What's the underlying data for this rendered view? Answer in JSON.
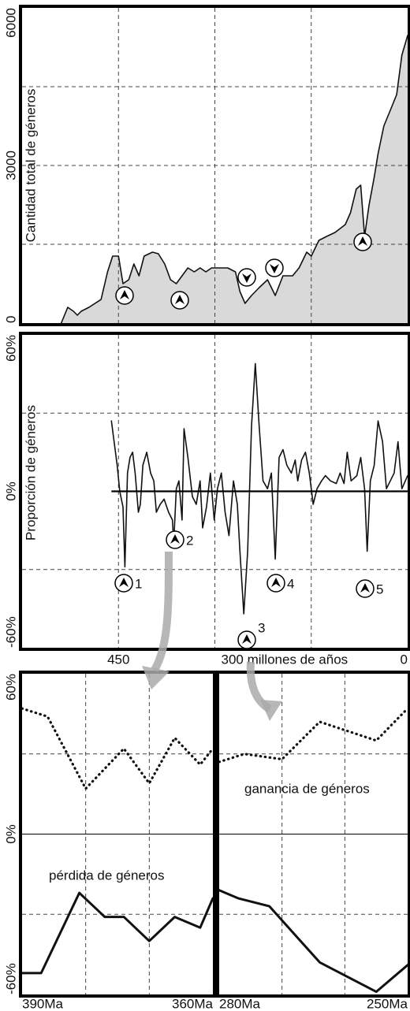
{
  "chart_data": [
    {
      "type": "area",
      "ylabel": "Cantidad total de géneros",
      "color": "#111111",
      "fill": "#d9d9d9",
      "xlim": [
        600,
        0
      ],
      "ylim": [
        0,
        6000
      ],
      "yticks": [
        0,
        3000,
        6000
      ],
      "ygrid": [
        1500,
        3000,
        4500
      ],
      "xgrid": [
        450,
        300,
        150
      ],
      "x": [
        539,
        529,
        520,
        514,
        508,
        496,
        477,
        467,
        459,
        450,
        443,
        434,
        426,
        418,
        410,
        397,
        388,
        378,
        369,
        360,
        351,
        342,
        332,
        323,
        314,
        305,
        292,
        280,
        268,
        261,
        253,
        243,
        231,
        218,
        206,
        194,
        179,
        169,
        157,
        150,
        138,
        126,
        113,
        97,
        89,
        80,
        73,
        67,
        60,
        52,
        46,
        37,
        27,
        17,
        9,
        0
      ],
      "values": [
        0,
        300,
        225,
        150,
        225,
        300,
        450,
        975,
        1275,
        1275,
        750,
        825,
        1125,
        900,
        1275,
        1350,
        1320,
        1125,
        825,
        750,
        900,
        1050,
        975,
        1050,
        975,
        1050,
        1050,
        1050,
        975,
        600,
        375,
        525,
        675,
        825,
        525,
        900,
        900,
        1050,
        1350,
        1275,
        1575,
        1650,
        1725,
        1875,
        2100,
        2550,
        2625,
        1650,
        2250,
        2775,
        3225,
        3750,
        4050,
        4350,
        5100,
        5475
      ]
    },
    {
      "type": "line",
      "ylabel": "Proporción de géneros",
      "color": "#111111",
      "zero_line": true,
      "xlim": [
        600,
        0
      ],
      "ylim": [
        -60,
        60
      ],
      "yticks": [
        {
          "value": 60,
          "label": "60%"
        },
        {
          "value": 0,
          "label": "0%"
        },
        {
          "value": -60,
          "label": "-60%"
        }
      ],
      "xticks": [
        {
          "value": 450,
          "label": "450"
        },
        {
          "value": 300,
          "label": "300 millones de años"
        },
        0
      ],
      "ygrid": [
        30,
        -30
      ],
      "xgrid": [
        450,
        300,
        150
      ],
      "markers": [
        "1",
        "2",
        "3",
        "4",
        "5"
      ],
      "x": [
        461,
        452,
        448,
        443,
        440,
        436,
        432,
        428,
        424,
        419,
        416,
        412,
        406,
        400,
        395,
        391,
        385,
        379,
        372,
        366,
        364,
        360,
        356,
        351,
        348,
        342,
        335,
        329,
        323,
        319,
        313,
        307,
        301,
        296,
        290,
        284,
        278,
        271,
        265,
        261,
        255,
        249,
        243,
        237,
        231,
        225,
        218,
        212,
        206,
        200,
        194,
        188,
        181,
        175,
        171,
        165,
        159,
        153,
        147,
        141,
        134,
        128,
        120,
        111,
        105,
        99,
        94,
        88,
        79,
        73,
        67,
        63,
        58,
        52,
        46,
        39,
        33,
        27,
        21,
        15,
        9,
        0
      ],
      "values": [
        27,
        10,
        0,
        -6,
        -29,
        7,
        13,
        15,
        7,
        -8,
        -5,
        10,
        15,
        7,
        4,
        -8,
        -5,
        -3,
        -8,
        -11,
        -20,
        1,
        4,
        -11,
        24,
        13,
        -2,
        -5,
        4,
        -14,
        -6,
        7,
        -11,
        1,
        7,
        -8,
        -17,
        4,
        -5,
        -23,
        -47,
        -23,
        25,
        49,
        25,
        4,
        1,
        7,
        -26,
        13,
        16,
        10,
        7,
        12,
        4,
        12,
        15,
        7,
        -5,
        1,
        4,
        6,
        4,
        3,
        7,
        3,
        15,
        4,
        6,
        13,
        1,
        -23,
        4,
        10,
        27,
        19,
        1,
        4,
        7,
        19,
        1,
        6
      ]
    },
    {
      "type": "line",
      "annotation": "pérdida de géneros",
      "zero_line": true,
      "xlim": [
        390,
        360
      ],
      "ylim": [
        -60,
        60
      ],
      "yticks": [
        {
          "value": 60,
          "label": "60%"
        },
        {
          "value": 0,
          "label": "0%"
        },
        {
          "value": -60,
          "label": "-60%"
        }
      ],
      "xticks": [
        {
          "value": 390,
          "label": "390Ma"
        },
        {
          "value": 360,
          "label": "360Ma"
        }
      ],
      "ygrid": [
        30,
        -30
      ],
      "xgrid": [
        380,
        370
      ],
      "series": [
        {
          "style": "dotted",
          "color": "#111111",
          "x": [
            390,
            386,
            380,
            374,
            370,
            366,
            362,
            360
          ],
          "values": [
            47,
            44,
            17,
            32,
            19,
            36,
            26,
            32
          ]
        },
        {
          "style": "solid",
          "color": "#111111",
          "x": [
            390,
            387,
            381,
            377,
            374,
            370,
            366,
            362,
            360
          ],
          "values": [
            -52,
            -52,
            -22,
            -31,
            -31,
            -40,
            -31,
            -35,
            -24
          ]
        }
      ]
    },
    {
      "type": "line",
      "annotation": "ganancia de géneros",
      "zero_line": true,
      "xlim": [
        280,
        250
      ],
      "ylim": [
        -60,
        60
      ],
      "xticks": [
        {
          "value": 280,
          "label": "280Ma"
        },
        {
          "value": 250,
          "label": "250Ma"
        }
      ],
      "ygrid": [
        30,
        -30
      ],
      "xgrid": [
        270,
        260
      ],
      "series": [
        {
          "style": "dotted",
          "color": "#111111",
          "x": [
            280,
            276,
            270,
            264,
            255,
            250
          ],
          "values": [
            27,
            30,
            28,
            42,
            35,
            47
          ]
        },
        {
          "style": "solid",
          "color": "#111111",
          "x": [
            280,
            277,
            272,
            264,
            255,
            250
          ],
          "values": [
            -21,
            -24,
            -27,
            -48,
            -59,
            -49
          ]
        }
      ]
    }
  ]
}
